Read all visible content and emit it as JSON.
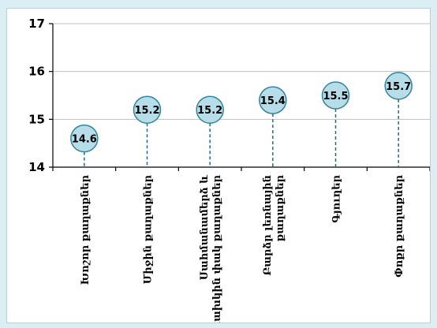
{
  "chart_data": {
    "type": "scatter",
    "categories": [
      [
        "Խոշոր քաղաքներ"
      ],
      [
        "Միջին քաղաքներ"
      ],
      [
        "Սահմանամերձ և",
        "նախկին փակ քաղաքներ"
      ],
      [
        "Բարձր լեռնային",
        "քաղաքներ"
      ],
      [
        "Գյուղեր"
      ],
      [
        "Փոքր քաղաքներ"
      ]
    ],
    "values": [
      14.6,
      15.2,
      15.2,
      15.4,
      15.5,
      15.7
    ],
    "value_labels": [
      "14.6",
      "15.2",
      "15.2",
      "15.4",
      "15.5",
      "15.7"
    ],
    "ylim": [
      14,
      17
    ],
    "yticks": [
      14,
      15,
      16,
      17
    ],
    "ytick_labels": [
      "14",
      "15",
      "16",
      "17"
    ],
    "grid": true,
    "colors": {
      "marker_fill": "#b7dde8",
      "marker_stroke": "#31849b",
      "drop_line": "#1f6b8a",
      "grid": "#c0c0c0",
      "axis": "#000000",
      "background": "#dbeef3"
    }
  }
}
